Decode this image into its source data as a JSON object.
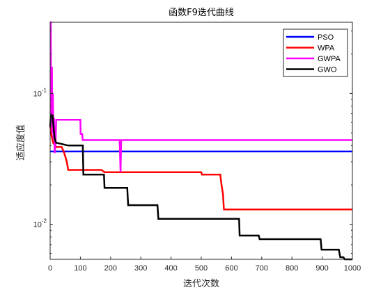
{
  "chart_data": {
    "type": "line",
    "title": "函数F9迭代曲线",
    "xlabel": "迭代次数",
    "ylabel": "适应度值",
    "xlim": [
      0,
      1000
    ],
    "ylim": [
      0.0054,
      0.35
    ],
    "yscale": "log",
    "x_ticks": [
      0,
      100,
      200,
      300,
      400,
      500,
      600,
      700,
      800,
      900,
      1000
    ],
    "x_tick_labels": [
      "0",
      "100",
      "200",
      "300",
      "400",
      "500",
      "600",
      "700",
      "800",
      "900",
      "1000"
    ],
    "y_ticks": [
      0.01,
      0.1
    ],
    "y_tick_bases": [
      "10",
      "10"
    ],
    "y_tick_exponents": [
      "-2",
      "-1"
    ],
    "grid": false,
    "legend_position": "top-right",
    "series": [
      {
        "name": "PSO",
        "color": "#0000ff",
        "points": [
          [
            0,
            0.036
          ],
          [
            1000,
            0.036
          ]
        ]
      },
      {
        "name": "WPA",
        "color": "#ff0000",
        "points": [
          [
            0,
            0.059
          ],
          [
            2,
            0.052
          ],
          [
            5,
            0.047
          ],
          [
            10,
            0.042
          ],
          [
            20,
            0.039
          ],
          [
            38,
            0.039
          ],
          [
            45,
            0.036
          ],
          [
            50,
            0.033
          ],
          [
            55,
            0.03
          ],
          [
            60,
            0.026
          ],
          [
            115,
            0.026
          ],
          [
            125,
            0.026
          ],
          [
            170,
            0.026
          ],
          [
            180,
            0.025
          ],
          [
            290,
            0.025
          ],
          [
            300,
            0.025
          ],
          [
            500,
            0.025
          ],
          [
            502,
            0.024
          ],
          [
            563,
            0.024
          ],
          [
            567,
            0.02
          ],
          [
            572,
            0.017
          ],
          [
            575,
            0.013
          ],
          [
            1000,
            0.013
          ]
        ]
      },
      {
        "name": "GWPA",
        "color": "#ff00ff",
        "points": [
          [
            0,
            0.35
          ],
          [
            2,
            0.35
          ],
          [
            3,
            0.06
          ],
          [
            5,
            0.06
          ],
          [
            6,
            0.16
          ],
          [
            7,
            0.05
          ],
          [
            9,
            0.1
          ],
          [
            11,
            0.045
          ],
          [
            13,
            0.065
          ],
          [
            15,
            0.035
          ],
          [
            18,
            0.042
          ],
          [
            20,
            0.063
          ],
          [
            100,
            0.063
          ],
          [
            101,
            0.049
          ],
          [
            106,
            0.049
          ],
          [
            108,
            0.044
          ],
          [
            230,
            0.044
          ],
          [
            233,
            0.025
          ],
          [
            235,
            0.044
          ],
          [
            1000,
            0.044
          ]
        ]
      },
      {
        "name": "GWO",
        "color": "#000000",
        "points": [
          [
            0,
            0.055
          ],
          [
            2,
            0.068
          ],
          [
            8,
            0.068
          ],
          [
            10,
            0.06
          ],
          [
            15,
            0.045
          ],
          [
            20,
            0.042
          ],
          [
            40,
            0.041
          ],
          [
            60,
            0.04
          ],
          [
            108,
            0.04
          ],
          [
            110,
            0.024
          ],
          [
            150,
            0.024
          ],
          [
            178,
            0.024
          ],
          [
            180,
            0.019
          ],
          [
            255,
            0.019
          ],
          [
            258,
            0.014
          ],
          [
            355,
            0.014
          ],
          [
            358,
            0.011
          ],
          [
            625,
            0.011
          ],
          [
            627,
            0.0082
          ],
          [
            690,
            0.0082
          ],
          [
            693,
            0.0077
          ],
          [
            895,
            0.0077
          ],
          [
            898,
            0.0064
          ],
          [
            955,
            0.0064
          ],
          [
            960,
            0.0056
          ],
          [
            970,
            0.0056
          ],
          [
            975,
            0.0054
          ],
          [
            1000,
            0.0054
          ]
        ]
      }
    ]
  }
}
